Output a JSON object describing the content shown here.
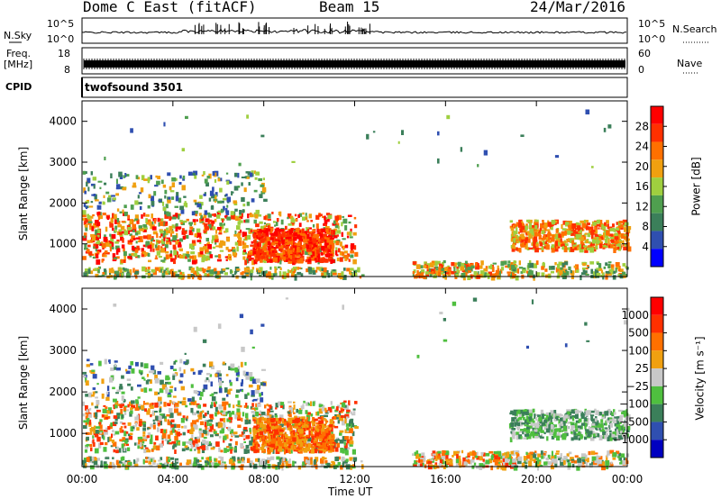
{
  "header": {
    "station": "Dome C East (fitACF)",
    "beam": "Beam 15",
    "date": "24/Mar/2016"
  },
  "top_panels": {
    "nsky_label": "N.Sky",
    "nsky_tick_top": "10^5",
    "nsky_tick_bottom": "10^0",
    "nsearch_label": "N.Search",
    "nsearch_tick_top": "10^5",
    "nsearch_tick_bottom": "10^0",
    "freq_label_1": "Freq.",
    "freq_label_2": "[MHz]",
    "freq_tick_top": "18",
    "freq_tick_bottom": "8",
    "nave_label": "Nave",
    "nave_tick_top": "60",
    "nave_tick_bottom": "0",
    "cpid_label": "CPID",
    "cpid_value": "twofsound 3501"
  },
  "colors": {
    "power": [
      "#0000ff",
      "#2f4fb0",
      "#3b7f5a",
      "#4f9f4f",
      "#9fcf3f",
      "#f0a010",
      "#ff7000",
      "#ff3000",
      "#ff0000"
    ],
    "velocity": [
      "#0000c0",
      "#2f4fb0",
      "#3b7f5a",
      "#4fbf3f",
      "#c8c8c8",
      "#f0a010",
      "#ff7000",
      "#ff3000",
      "#ff0000"
    ]
  },
  "chart_data": [
    {
      "type": "heatmap",
      "name": "power",
      "ylabel": "Slant Range [km]",
      "ylim": [
        200,
        4500
      ],
      "yticks": [
        "1000",
        "2000",
        "3000",
        "4000"
      ],
      "colorbar_label": "Power [dB]",
      "colorbar_ticks": [
        "4",
        "8",
        "12",
        "16",
        "20",
        "24",
        "28"
      ],
      "colorbar_range": [
        0,
        32
      ]
    },
    {
      "type": "heatmap",
      "name": "velocity",
      "ylabel": "Slant Range [km]",
      "ylim": [
        200,
        4500
      ],
      "yticks": [
        "1000",
        "2000",
        "3000",
        "4000"
      ],
      "colorbar_label": "Velocity [m s⁻¹]",
      "colorbar_ticks": [
        "1000",
        "500",
        "100",
        "25",
        "−25",
        "−100",
        "−500",
        "−1000"
      ]
    }
  ],
  "xaxis": {
    "label": "Time UT",
    "ticks": [
      "00:00",
      "04:00",
      "08:00",
      "12:00",
      "16:00",
      "20:00",
      "00:00"
    ],
    "xlim": [
      0,
      24
    ]
  }
}
